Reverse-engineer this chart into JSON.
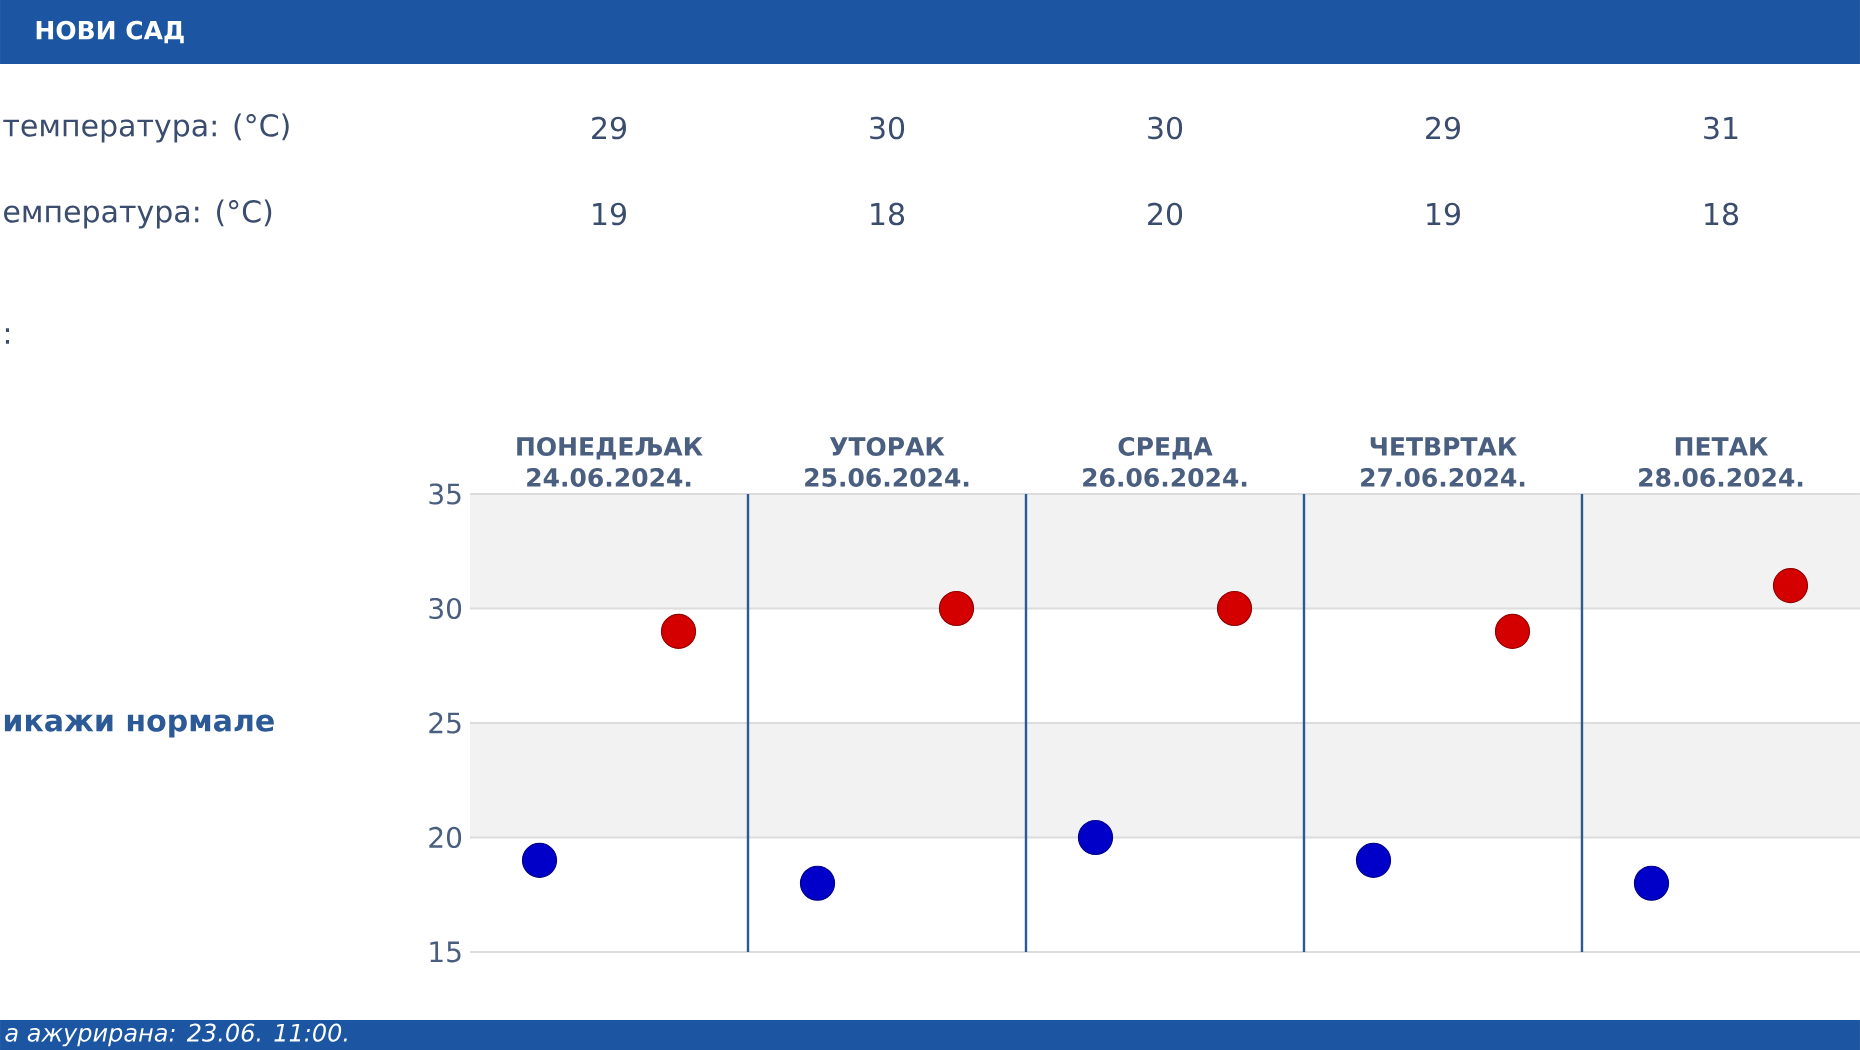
{
  "chart_data": {
    "type": "scatter",
    "title": "НОВИ САД",
    "categories": [
      "ПОНЕДЕЉАК 24.06.2024.",
      "УТОРАК 25.06.2024.",
      "СРЕДА 26.06.2024.",
      "ЧЕТВРТАК 27.06.2024.",
      "ПЕТАК 28.06.2024."
    ],
    "series": [
      {
        "color": "#d40000",
        "values": [
          29,
          30,
          30,
          29,
          31
        ]
      },
      {
        "color": "#0000c8",
        "values": [
          19,
          18,
          20,
          19,
          18
        ]
      }
    ],
    "ylim": [
      15,
      35
    ],
    "yticks": [
      15,
      20,
      25,
      30,
      35
    ],
    "grid": true,
    "marker": "circle",
    "data_labels": true,
    "bands": [
      {
        "axis": "y",
        "from": 30,
        "to": 35,
        "color": "#f2f2f2"
      },
      {
        "axis": "y",
        "from": 20,
        "to": 25,
        "color": "#f2f2f2"
      }
    ],
    "annotations": [
      "температура: (°C)",
      "емпература: (°C)",
      ":",
      "икажи нормале",
      "а ажурирана: 23.06. 11:00."
    ]
  }
}
